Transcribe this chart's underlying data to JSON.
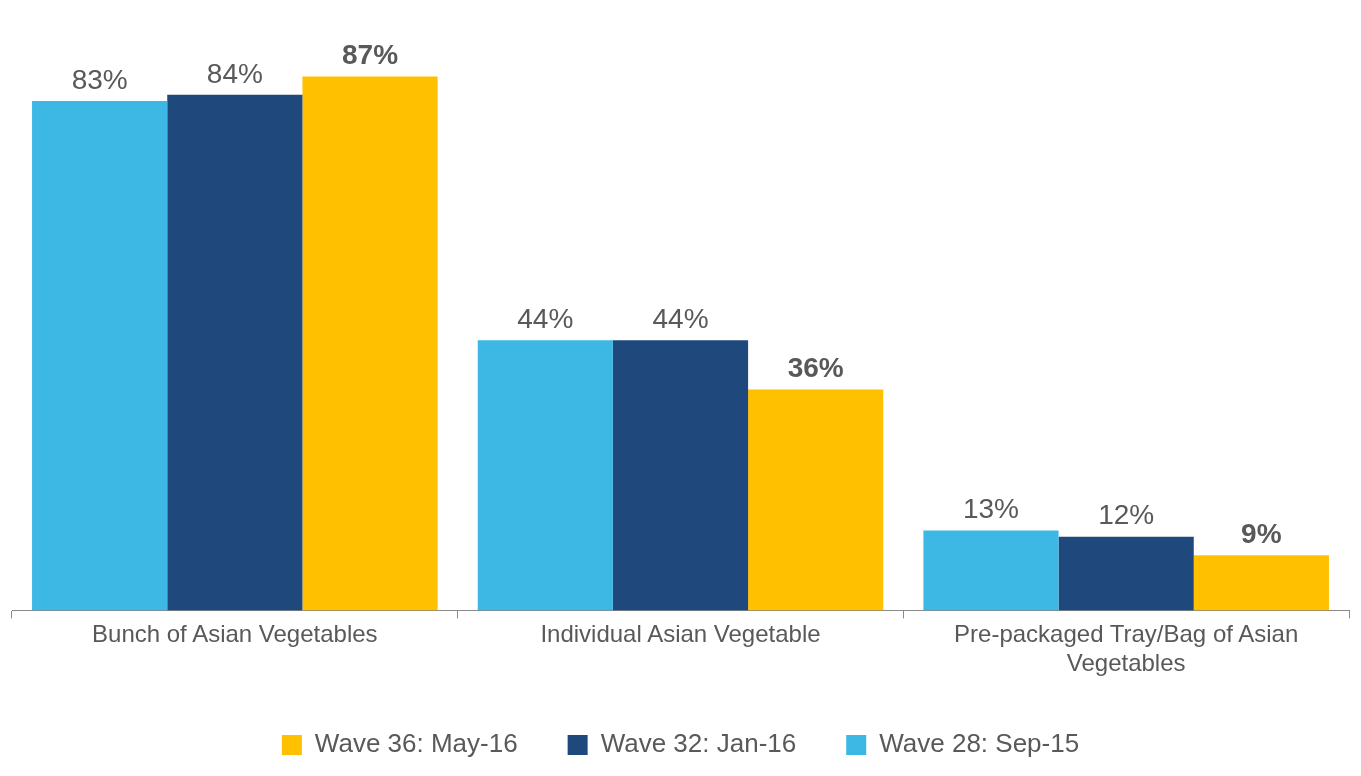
{
  "chart_data": {
    "type": "bar",
    "categories": [
      "Bunch of Asian Vegetables",
      "Individual Asian Vegetable",
      "Pre-packaged Tray/Bag of Asian Vegetables"
    ],
    "series": [
      {
        "name": "Wave 28: Sep-15",
        "color": "#3db8e4",
        "values": [
          83,
          44,
          13
        ],
        "value_labels": [
          "83%",
          "44%",
          "13%"
        ]
      },
      {
        "name": "Wave 32: Jan-16",
        "color": "#1f497d",
        "values": [
          84,
          44,
          12
        ],
        "value_labels": [
          "84%",
          "44%",
          "12%"
        ]
      },
      {
        "name": "Wave 36: May-16",
        "color": "#ffc000",
        "values": [
          87,
          36,
          9
        ],
        "value_labels": [
          "87%",
          "36%",
          "9%"
        ]
      }
    ],
    "legend": "bottom",
    "grid": false
  }
}
